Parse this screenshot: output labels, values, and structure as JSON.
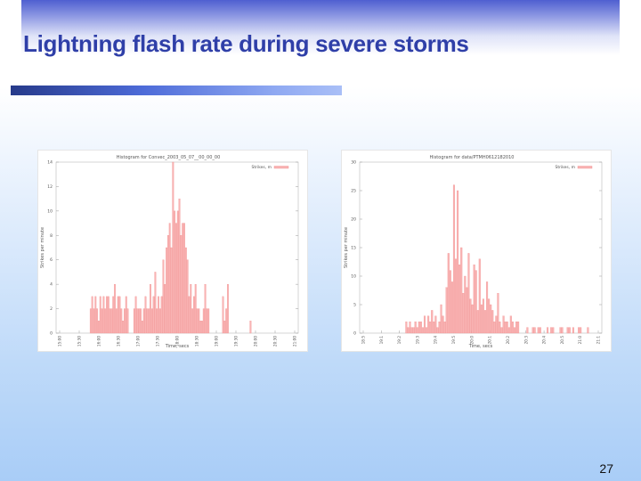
{
  "slide": {
    "title": "Lightning flash rate during severe storms",
    "page_number": "27"
  },
  "colors": {
    "bar_fill": "#f9b4b4",
    "bar_stroke": "#f08c8c",
    "title_text": "#2f3fa8"
  },
  "chart_data": [
    {
      "type": "bar",
      "title": "Histogram for Convec_2003_05_07__00_00_00",
      "xlabel": "Time, secs",
      "ylabel": "Strikes per minute",
      "legend": "Strikes, m",
      "legend_position": "top-right",
      "grid": false,
      "ylim": [
        0,
        14
      ],
      "y_ticks": [
        "0",
        "2",
        "4",
        "6",
        "8",
        "10",
        "12",
        "14"
      ],
      "x_tick_labels": [
        "15:00",
        "15:30",
        "16:00",
        "16:30",
        "17:00",
        "17:30",
        "18:00",
        "18:30",
        "19:00",
        "19:30",
        "20:00",
        "20:30",
        "21:00"
      ],
      "values": [
        0,
        0,
        0,
        0,
        0,
        0,
        0,
        0,
        0,
        0,
        0,
        0,
        0,
        0,
        0,
        0,
        0,
        0,
        0,
        0,
        0,
        2,
        3,
        2,
        3,
        2,
        1,
        3,
        2,
        3,
        2,
        3,
        3,
        2,
        2,
        3,
        4,
        2,
        3,
        3,
        2,
        1,
        2,
        3,
        2,
        0,
        0,
        0,
        2,
        3,
        2,
        2,
        2,
        1,
        2,
        3,
        2,
        2,
        4,
        2,
        3,
        5,
        2,
        3,
        2,
        3,
        6,
        4,
        7,
        8,
        9,
        7,
        14,
        10,
        9,
        10,
        11,
        8,
        9,
        9,
        7,
        6,
        3,
        4,
        2,
        3,
        4,
        2,
        2,
        1,
        1,
        2,
        4,
        2,
        2,
        0,
        0,
        0,
        0,
        0,
        0,
        0,
        0,
        3,
        1,
        2,
        4,
        0,
        0,
        0,
        0,
        0,
        0,
        0,
        0,
        0,
        0,
        0,
        0,
        0,
        1,
        0,
        0,
        0,
        0,
        0,
        0,
        0,
        0,
        0,
        0,
        0,
        0,
        0,
        0,
        0,
        0,
        0,
        0,
        0,
        0,
        0,
        0,
        0,
        0,
        0,
        0,
        0,
        0,
        0
      ]
    },
    {
      "type": "bar",
      "title": "Histogram for data/PTMH0612182010",
      "xlabel": "Time, secs",
      "ylabel": "Strikes per minute",
      "legend": "Strikes, m",
      "legend_position": "top-right",
      "grid": false,
      "ylim": [
        0,
        30
      ],
      "y_ticks": [
        "0",
        "5",
        "10",
        "15",
        "20",
        "25",
        "30"
      ],
      "x_tick_labels": [
        "18:5",
        "19:1",
        "19:2",
        "19:3",
        "19:4",
        "19:5",
        "20:0",
        "20:1",
        "20:2",
        "20:3",
        "20:4",
        "20:5",
        "21:0",
        "21:1"
      ],
      "values": [
        0,
        0,
        0,
        0,
        0,
        0,
        0,
        0,
        0,
        0,
        0,
        0,
        0,
        0,
        0,
        0,
        0,
        0,
        0,
        0,
        0,
        0,
        0,
        0,
        0,
        2,
        1,
        2,
        1,
        1,
        2,
        1,
        2,
        2,
        1,
        3,
        1,
        3,
        2,
        4,
        2,
        3,
        1,
        2,
        5,
        3,
        2,
        8,
        14,
        11,
        9,
        26,
        13,
        25,
        12,
        15,
        7,
        10,
        8,
        14,
        6,
        5,
        12,
        11,
        4,
        13,
        5,
        6,
        4,
        9,
        6,
        5,
        4,
        2,
        3,
        7,
        2,
        1,
        3,
        2,
        2,
        1,
        3,
        2,
        1,
        2,
        2,
        0,
        0,
        0,
        0,
        1,
        0,
        0,
        1,
        1,
        0,
        1,
        1,
        0,
        0,
        0,
        1,
        0,
        1,
        1,
        0,
        0,
        0,
        1,
        1,
        0,
        0,
        1,
        1,
        0,
        1,
        0,
        0,
        1,
        1,
        0,
        0,
        0,
        1,
        0,
        0,
        0,
        0,
        0,
        0,
        0
      ]
    }
  ]
}
